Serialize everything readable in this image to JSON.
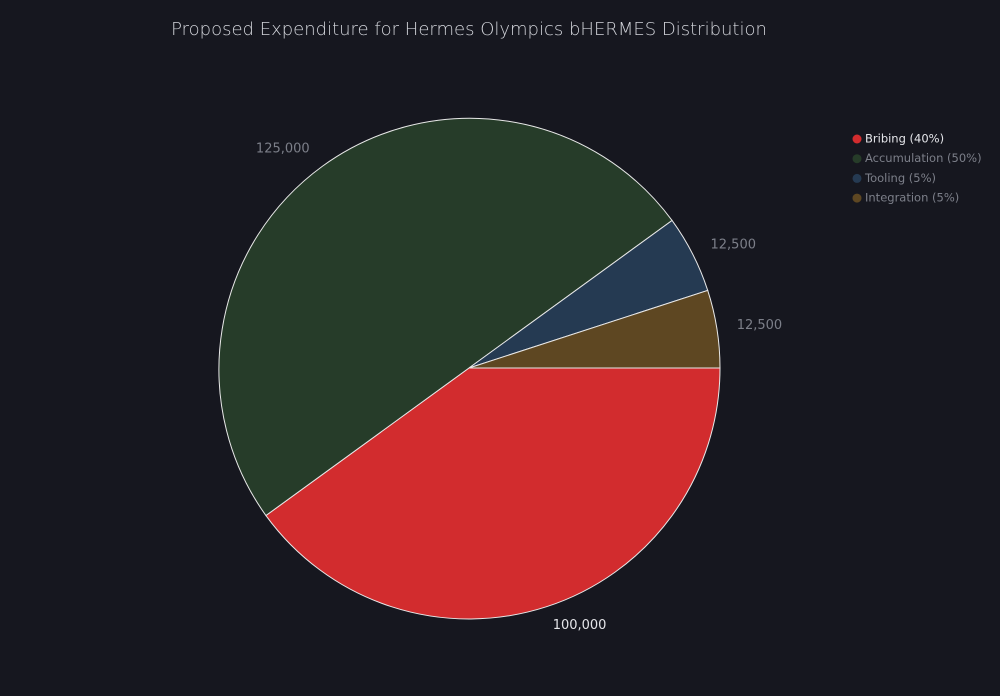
{
  "chart_data": {
    "type": "pie",
    "title": "Proposed Expenditure for Hermes Olympics bHERMES Distribution",
    "slices": [
      {
        "name": "Bribing (40%)",
        "value": 100000,
        "label": "100,000",
        "color": "#d22c2e",
        "active": true
      },
      {
        "name": "Accumulation (50%)",
        "value": 125000,
        "label": "125,000",
        "color": "#263c29",
        "active": false
      },
      {
        "name": "Tooling (5%)",
        "value": 12500,
        "label": "12,500",
        "color": "#253a52",
        "active": false
      },
      {
        "name": "Integration (5%)",
        "value": 12500,
        "label": "12,500",
        "color": "#5e4722",
        "active": false
      }
    ],
    "start_angle_deg": 0,
    "direction": "clockwise",
    "legend_position": "top-right"
  },
  "colors": {
    "background": "#16171f",
    "slice_border": "#e8e8e8",
    "label_active": "#e4e5e9",
    "label_inactive": "#7c7f89"
  }
}
